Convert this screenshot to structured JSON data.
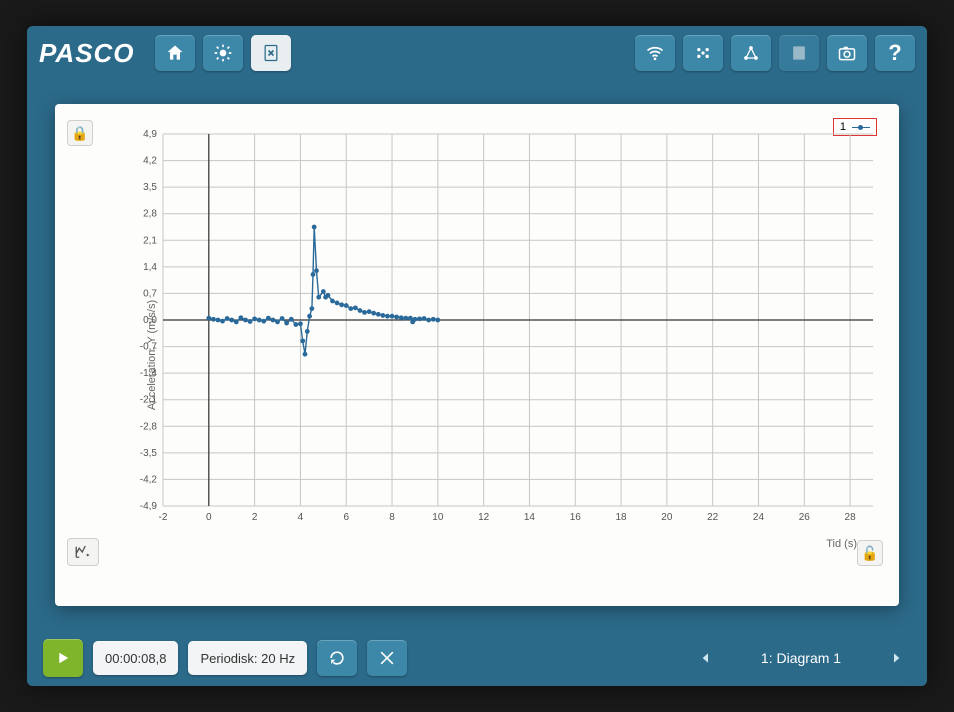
{
  "app": {
    "logo_text": "PASCO",
    "topbar_bg": "#2c6a8a",
    "button_bg": "#3d87a8",
    "panel_bg": "#fdfdfb"
  },
  "toolbar_icons": {
    "home": "home-icon",
    "brightness": "brightness-icon",
    "delete_page": "delete-page-icon",
    "wifi": "wifi-icon",
    "sensors": "sensors-icon",
    "network": "network-icon",
    "notebook": "notebook-icon",
    "camera": "camera-icon",
    "help": "?"
  },
  "chart": {
    "type": "scatter-line",
    "ylabel": "Acceleration, Y (m/s/s)",
    "xlabel": "Tid (s)",
    "legend_label": "1",
    "series_color": "#2a6a9a",
    "grid_color": "#c6c6c3",
    "axis_color": "#333333",
    "background_color": "#fdfdfb",
    "xlim": [
      -2,
      29
    ],
    "ylim": [
      -4.9,
      4.9
    ],
    "xtick_step": 2,
    "ytick_step": 0.7,
    "xtick_labels": [
      "0",
      "2",
      "4",
      "6",
      "8",
      "10",
      "12",
      "14",
      "16",
      "18",
      "20",
      "22",
      "24",
      "26",
      "28"
    ],
    "ytick_labels": [
      "4,9",
      "4,2",
      "3,5",
      "2,8",
      "2,1",
      "1,4",
      "0,7",
      "0,0",
      "-0,7",
      "-1,4",
      "-2,1",
      "-2,8",
      "-3,5",
      "-4,2",
      "-4,9"
    ],
    "marker_radius": 2.4,
    "line_width": 1.4,
    "data": [
      [
        0.0,
        0.05
      ],
      [
        0.2,
        0.02
      ],
      [
        0.4,
        0.0
      ],
      [
        0.6,
        -0.03
      ],
      [
        0.8,
        0.04
      ],
      [
        1.0,
        0.0
      ],
      [
        1.2,
        -0.05
      ],
      [
        1.4,
        0.06
      ],
      [
        1.6,
        0.0
      ],
      [
        1.8,
        -0.04
      ],
      [
        2.0,
        0.03
      ],
      [
        2.2,
        0.0
      ],
      [
        2.4,
        -0.03
      ],
      [
        2.6,
        0.05
      ],
      [
        2.8,
        0.0
      ],
      [
        3.0,
        -0.05
      ],
      [
        3.2,
        0.04
      ],
      [
        3.4,
        -0.08
      ],
      [
        3.6,
        0.02
      ],
      [
        3.8,
        -0.12
      ],
      [
        4.0,
        -0.1
      ],
      [
        4.1,
        -0.55
      ],
      [
        4.2,
        -0.9
      ],
      [
        4.3,
        -0.3
      ],
      [
        4.4,
        0.1
      ],
      [
        4.5,
        0.3
      ],
      [
        4.55,
        1.2
      ],
      [
        4.6,
        2.45
      ],
      [
        4.7,
        1.3
      ],
      [
        4.8,
        0.6
      ],
      [
        5.0,
        0.75
      ],
      [
        5.1,
        0.6
      ],
      [
        5.2,
        0.65
      ],
      [
        5.4,
        0.5
      ],
      [
        5.6,
        0.45
      ],
      [
        5.8,
        0.4
      ],
      [
        6.0,
        0.38
      ],
      [
        6.2,
        0.3
      ],
      [
        6.4,
        0.32
      ],
      [
        6.6,
        0.25
      ],
      [
        6.8,
        0.2
      ],
      [
        7.0,
        0.22
      ],
      [
        7.2,
        0.18
      ],
      [
        7.4,
        0.15
      ],
      [
        7.6,
        0.12
      ],
      [
        7.8,
        0.1
      ],
      [
        8.0,
        0.1
      ],
      [
        8.2,
        0.08
      ],
      [
        8.4,
        0.06
      ],
      [
        8.6,
        0.05
      ],
      [
        8.8,
        0.05
      ],
      [
        8.9,
        -0.05
      ],
      [
        9.0,
        0.02
      ],
      [
        9.2,
        0.03
      ],
      [
        9.4,
        0.04
      ],
      [
        9.6,
        0.0
      ],
      [
        9.8,
        0.02
      ],
      [
        10.0,
        0.0
      ]
    ]
  },
  "bottom": {
    "play_color": "#7fb52a",
    "time_display": "00:00:08,8",
    "sample_mode": "Periodisk: 20 Hz",
    "page_title": "1: Diagram 1"
  }
}
